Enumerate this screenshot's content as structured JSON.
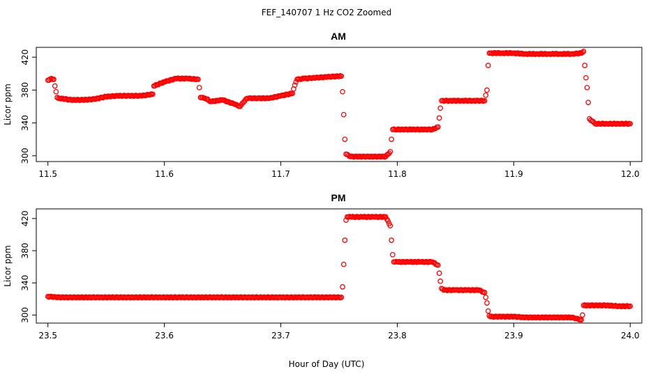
{
  "figure": {
    "title": "FEF_140707  1 Hz CO2 Zoomed",
    "xlabel": "Hour of Day (UTC)",
    "marker_color": "#ff0000"
  },
  "chart_data": [
    {
      "type": "scatter",
      "title": "AM",
      "ylabel": "Licor ppm",
      "xlabel": "",
      "xlim": [
        11.49,
        12.01
      ],
      "ylim": [
        293,
        432
      ],
      "xticks": [
        11.5,
        11.6,
        11.7,
        11.8,
        11.9,
        12.0
      ],
      "xtick_labels": [
        "11.5",
        "11.6",
        "11.7",
        "11.8",
        "11.9",
        "12.0"
      ],
      "yticks": [
        300,
        340,
        380,
        420
      ],
      "ytick_labels": [
        "300",
        "340",
        "380",
        "420"
      ],
      "grid": false,
      "series": [
        {
          "color": "#ff0000",
          "marker": "open-circle",
          "x": [
            11.5,
            11.503,
            11.505,
            11.506,
            11.507,
            11.508,
            11.51,
            11.52,
            11.53,
            11.54,
            11.55,
            11.56,
            11.57,
            11.58,
            11.59,
            11.591,
            11.6,
            11.61,
            11.62,
            11.629,
            11.63,
            11.631,
            11.635,
            11.64,
            11.65,
            11.66,
            11.665,
            11.67,
            11.672,
            11.68,
            11.69,
            11.7,
            11.71,
            11.712,
            11.714,
            11.72,
            11.73,
            11.74,
            11.752,
            11.753,
            11.754,
            11.755,
            11.756,
            11.76,
            11.77,
            11.78,
            11.79,
            11.794,
            11.795,
            11.796,
            11.8,
            11.81,
            11.82,
            11.83,
            11.835,
            11.836,
            11.837,
            11.838,
            11.845,
            11.855,
            11.865,
            11.875,
            11.877,
            11.878,
            11.879,
            11.88,
            11.89,
            11.9,
            11.91,
            11.92,
            11.93,
            11.94,
            11.95,
            11.958,
            11.96,
            11.961,
            11.962,
            11.963,
            11.964,
            11.965,
            11.97,
            11.98,
            11.99,
            12.0
          ],
          "y": [
            392,
            394,
            393,
            385,
            378,
            371,
            370,
            368,
            368,
            369,
            372,
            373,
            373,
            373,
            375,
            385,
            390,
            394,
            394,
            393,
            383,
            371,
            370,
            366,
            368,
            363,
            360,
            369,
            370,
            370,
            370,
            373,
            376,
            386,
            393,
            394,
            395,
            396,
            397,
            378,
            350,
            320,
            302,
            299,
            299,
            299,
            299,
            305,
            320,
            332,
            332,
            332,
            332,
            332,
            335,
            346,
            358,
            367,
            367,
            367,
            367,
            367,
            380,
            410,
            425,
            425,
            425,
            425,
            424,
            424,
            424,
            424,
            424,
            425,
            427,
            410,
            395,
            383,
            365,
            345,
            339,
            339,
            339,
            339
          ]
        }
      ]
    },
    {
      "type": "scatter",
      "title": "PM",
      "ylabel": "Licor ppm",
      "xlabel": "Hour of Day (UTC)",
      "xlim": [
        23.49,
        24.01
      ],
      "ylim": [
        290,
        432
      ],
      "xticks": [
        23.5,
        23.6,
        23.7,
        23.8,
        23.9,
        24.0
      ],
      "xtick_labels": [
        "23.5",
        "23.6",
        "23.7",
        "23.8",
        "23.9",
        "24.0"
      ],
      "yticks": [
        300,
        340,
        380,
        420
      ],
      "ytick_labels": [
        "300",
        "340",
        "380",
        "420"
      ],
      "grid": false,
      "series": [
        {
          "color": "#ff0000",
          "marker": "open-circle",
          "x": [
            23.5,
            23.51,
            23.53,
            23.55,
            23.57,
            23.6,
            23.63,
            23.66,
            23.7,
            23.73,
            23.752,
            23.753,
            23.754,
            23.755,
            23.756,
            23.757,
            23.76,
            23.77,
            23.78,
            23.79,
            23.794,
            23.795,
            23.796,
            23.797,
            23.8,
            23.81,
            23.82,
            23.83,
            23.835,
            23.836,
            23.837,
            23.838,
            23.84,
            23.85,
            23.86,
            23.87,
            23.875,
            23.877,
            23.878,
            23.879,
            23.88,
            23.89,
            23.9,
            23.91,
            23.92,
            23.93,
            23.94,
            23.95,
            23.958,
            23.959,
            23.96,
            23.97,
            23.98,
            23.99,
            24.0
          ],
          "y": [
            323,
            322,
            322,
            322,
            322,
            322,
            322,
            322,
            322,
            322,
            322,
            335,
            363,
            393,
            418,
            422,
            422,
            422,
            422,
            422,
            411,
            393,
            375,
            366,
            366,
            366,
            366,
            366,
            362,
            352,
            342,
            333,
            331,
            331,
            331,
            331,
            328,
            315,
            305,
            299,
            298,
            298,
            298,
            297,
            297,
            297,
            297,
            297,
            294,
            300,
            312,
            312,
            312,
            311,
            311
          ]
        }
      ]
    }
  ]
}
